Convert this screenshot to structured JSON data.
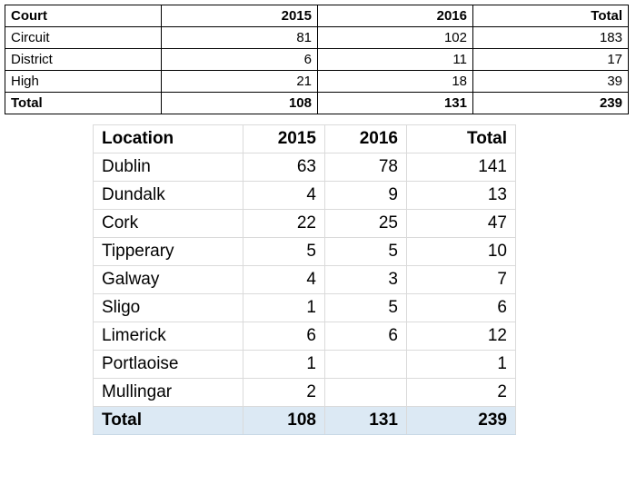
{
  "court_table": {
    "headers": [
      "Court",
      "2015",
      "2016",
      "Total"
    ],
    "rows": [
      {
        "label": "Circuit",
        "y2015": "81",
        "y2016": "102",
        "total": "183"
      },
      {
        "label": "District",
        "y2015": "6",
        "y2016": "11",
        "total": "17"
      },
      {
        "label": "High",
        "y2015": "21",
        "y2016": "18",
        "total": "39"
      }
    ],
    "total_row": {
      "label": "Total",
      "y2015": "108",
      "y2016": "131",
      "total": "239"
    }
  },
  "location_table": {
    "headers": [
      "Location",
      "2015",
      "2016",
      "Total"
    ],
    "rows": [
      {
        "label": "Dublin",
        "y2015": "63",
        "y2016": "78",
        "total": "141"
      },
      {
        "label": "Dundalk",
        "y2015": "4",
        "y2016": "9",
        "total": "13"
      },
      {
        "label": "Cork",
        "y2015": "22",
        "y2016": "25",
        "total": "47"
      },
      {
        "label": "Tipperary",
        "y2015": "5",
        "y2016": "5",
        "total": "10"
      },
      {
        "label": "Galway",
        "y2015": "4",
        "y2016": "3",
        "total": "7"
      },
      {
        "label": "Sligo",
        "y2015": "1",
        "y2016": "5",
        "total": "6"
      },
      {
        "label": "Limerick",
        "y2015": "6",
        "y2016": "6",
        "total": "12"
      },
      {
        "label": "Portlaoise",
        "y2015": "1",
        "y2016": "",
        "total": "1"
      },
      {
        "label": "Mullingar",
        "y2015": "2",
        "y2016": "",
        "total": "2"
      }
    ],
    "total_row": {
      "label": "Total",
      "y2015": "108",
      "y2016": "131",
      "total": "239"
    }
  },
  "colors": {
    "total_row_fill": "#dce9f4",
    "grid_light": "#dadada",
    "grid_dark": "#000000"
  }
}
